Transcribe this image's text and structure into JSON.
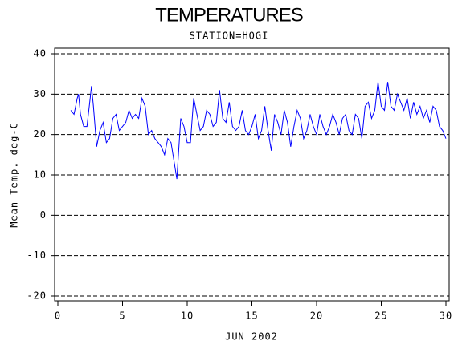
{
  "chart_data": {
    "type": "line",
    "title": "TEMPERATURES",
    "subtitle": "STATION=HOGI",
    "x_label": "JUN 2002",
    "y_label": "Mean Temp. deg-C",
    "xlim": [
      0,
      30
    ],
    "xticks": [
      0,
      5,
      10,
      15,
      20,
      25,
      30
    ],
    "ylim": [
      -20,
      40
    ],
    "yticks": [
      -20,
      -10,
      0,
      10,
      20,
      30,
      40
    ],
    "grid": true,
    "series": [
      {
        "name": "Mean Temp",
        "color": "#0000ff",
        "x": [
          1.0,
          1.25,
          1.5,
          1.6,
          1.75,
          2.0,
          2.25,
          2.5,
          2.6,
          2.75,
          3.0,
          3.25,
          3.5,
          3.75,
          4.0,
          4.25,
          4.5,
          4.75,
          5.0,
          5.25,
          5.5,
          5.75,
          6.0,
          6.25,
          6.5,
          6.75,
          7.0,
          7.25,
          7.5,
          7.75,
          8.0,
          8.25,
          8.5,
          8.75,
          9.0,
          9.2,
          9.5,
          9.75,
          10.0,
          10.25,
          10.5,
          10.75,
          11.0,
          11.25,
          11.5,
          11.75,
          12.0,
          12.25,
          12.5,
          12.75,
          13.0,
          13.25,
          13.5,
          13.75,
          14.0,
          14.25,
          14.5,
          14.75,
          15.0,
          15.25,
          15.5,
          15.75,
          16.0,
          16.25,
          16.5,
          16.75,
          17.0,
          17.25,
          17.5,
          17.75,
          18.0,
          18.25,
          18.5,
          18.75,
          19.0,
          19.25,
          19.5,
          19.75,
          20.0,
          20.25,
          20.5,
          20.75,
          21.0,
          21.25,
          21.5,
          21.75,
          22.0,
          22.25,
          22.5,
          22.75,
          23.0,
          23.25,
          23.5,
          23.75,
          24.0,
          24.25,
          24.5,
          24.75,
          25.0,
          25.25,
          25.5,
          25.75,
          26.0,
          26.25,
          26.5,
          26.75,
          27.0,
          27.25,
          27.5,
          27.75,
          28.0,
          28.25,
          28.5,
          28.75,
          29.0,
          29.25,
          29.5,
          29.75,
          30.0
        ],
        "values": [
          26,
          25,
          29,
          30,
          25,
          22,
          22,
          29,
          32,
          27,
          17,
          21,
          23,
          18,
          19,
          24,
          25,
          21,
          22,
          23,
          26,
          24,
          25,
          24,
          29,
          27,
          20,
          21,
          19,
          18,
          17,
          15,
          19,
          18,
          13,
          9,
          24,
          22,
          18,
          18,
          29,
          25,
          21,
          22,
          26,
          25,
          22,
          23,
          31,
          24,
          23,
          28,
          22,
          21,
          22,
          26,
          21,
          20,
          22,
          25,
          19,
          21,
          27,
          21,
          16,
          25,
          23,
          20,
          26,
          23,
          17,
          22,
          26,
          24,
          19,
          21,
          25,
          22,
          20,
          25,
          22,
          20,
          22,
          25,
          23,
          20,
          24,
          25,
          21,
          20,
          25,
          24,
          19,
          27,
          28,
          24,
          26,
          33,
          27,
          26,
          33,
          27,
          26,
          30,
          28,
          26,
          29,
          24,
          28,
          25,
          27,
          24,
          26,
          23,
          27,
          26,
          22,
          21,
          19
        ]
      }
    ]
  }
}
